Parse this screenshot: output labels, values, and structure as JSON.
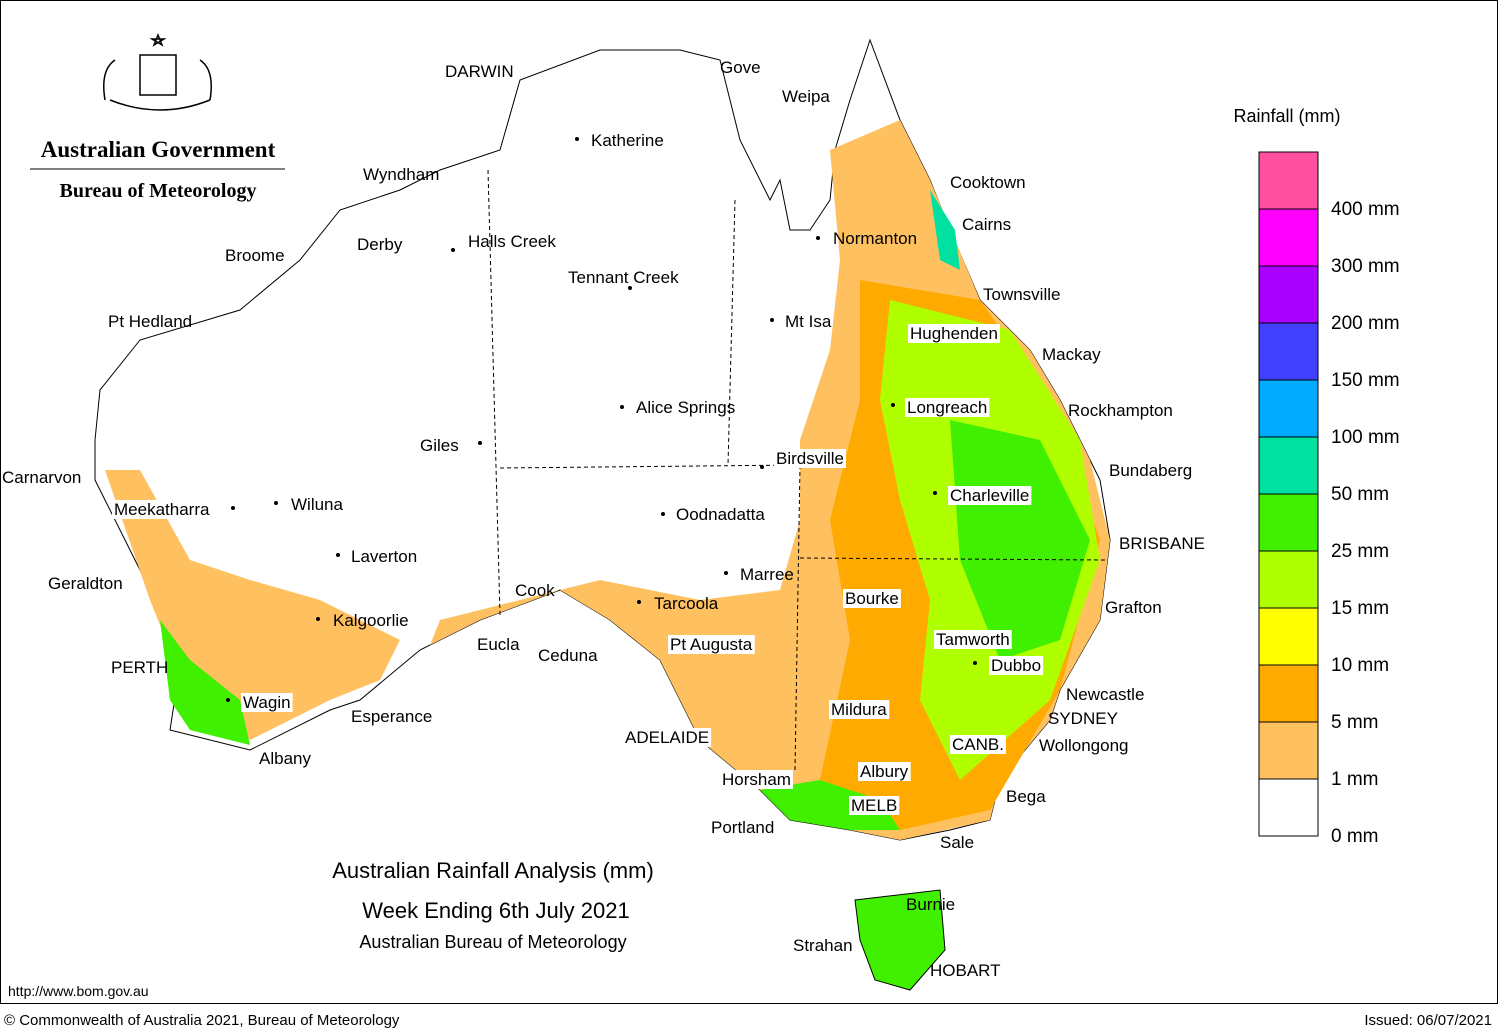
{
  "header": {
    "agency": "Australian Government",
    "bureau": "Bureau of Meteorology"
  },
  "map": {
    "title": "Australian Rainfall Analysis (mm)",
    "subtitle": "Week Ending 6th July 2021",
    "source": "Australian Bureau of Meteorology",
    "cities": [
      "DARWIN",
      "Gove",
      "Weipa",
      "Katherine",
      "Cooktown",
      "Wyndham",
      "Cairns",
      "Normanton",
      "Broome",
      "Derby",
      "Halls Creek",
      "Tennant Creek",
      "Townsville",
      "Pt Hedland",
      "Mt Isa",
      "Hughenden",
      "Mackay",
      "Alice Springs",
      "Longreach",
      "Rockhampton",
      "Giles",
      "Birdsville",
      "Bundaberg",
      "Carnarvon",
      "Charleville",
      "Meekatharra",
      "Wiluna",
      "Oodnadatta",
      "BRISBANE",
      "Laverton",
      "Marree",
      "Geraldton",
      "Cook",
      "Bourke",
      "Tarcoola",
      "Grafton",
      "Kalgoorlie",
      "Tamworth",
      "Eucla",
      "Pt Augusta",
      "Ceduna",
      "Dubbo",
      "PERTH",
      "Newcastle",
      "Wagin",
      "Mildura",
      "SYDNEY",
      "Esperance",
      "ADELAIDE",
      "CANB.",
      "Wollongong",
      "Albany",
      "Albury",
      "Horsham",
      "Bega",
      "MELB",
      "Portland",
      "Sale",
      "Burnie",
      "Strahan",
      "HOBART"
    ]
  },
  "legend": {
    "title": "Rainfall (mm)",
    "items": [
      {
        "label": "400 mm",
        "color": "#ff50a0"
      },
      {
        "label": "300 mm",
        "color": "#ff00ff"
      },
      {
        "label": "200 mm",
        "color": "#aa00ff"
      },
      {
        "label": "150 mm",
        "color": "#4040ff"
      },
      {
        "label": "100 mm",
        "color": "#00aaff"
      },
      {
        "label": "50 mm",
        "color": "#00e0a0"
      },
      {
        "label": "25 mm",
        "color": "#40f000"
      },
      {
        "label": "15 mm",
        "color": "#b0ff00"
      },
      {
        "label": "10 mm",
        "color": "#ffff00"
      },
      {
        "label": "5 mm",
        "color": "#ffaa00"
      },
      {
        "label": "1 mm",
        "color": "#ffc060"
      },
      {
        "label": "0 mm",
        "color": "#ffffff"
      }
    ]
  },
  "footer": {
    "url": "http://www.bom.gov.au",
    "copyright": "© Commonwealth of Australia 2021, Bureau of Meteorology",
    "issued": "Issued: 06/07/2021"
  }
}
